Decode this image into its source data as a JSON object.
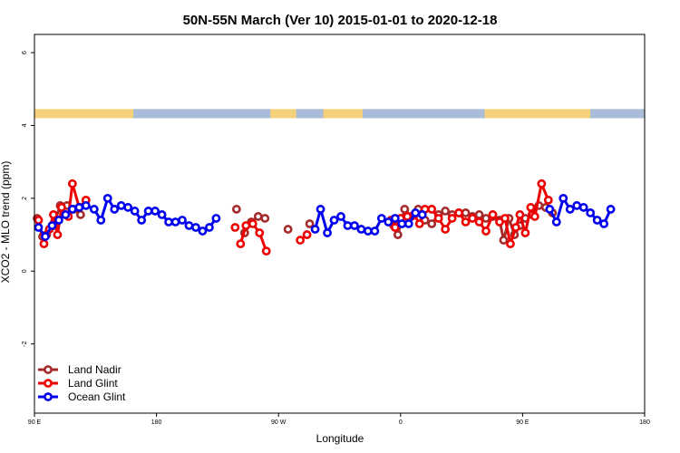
{
  "chart_data": {
    "type": "line",
    "title": "50N-55N March (Ver 10)   2015-01-01 to 2020-12-18",
    "xlabel": "Longitude",
    "ylabel": "XCO2 - MLO trend (ppm)",
    "xlim": [
      90,
      540
    ],
    "ylim": [
      -3.9,
      6.5
    ],
    "x_ticks": [
      {
        "value": 90,
        "label": "90 E"
      },
      {
        "value": 180,
        "label": "180"
      },
      {
        "value": 270,
        "label": "90 W"
      },
      {
        "value": 360,
        "label": "0"
      },
      {
        "value": 450,
        "label": "90 E"
      },
      {
        "value": 540,
        "label": "180"
      }
    ],
    "y_ticks": [
      {
        "value": -2,
        "label": "-2"
      },
      {
        "value": 0,
        "label": "0"
      },
      {
        "value": 2,
        "label": "2"
      },
      {
        "value": 4,
        "label": "4"
      },
      {
        "value": 6,
        "label": "6"
      }
    ],
    "grid": false,
    "legend_position": "bottom-left",
    "landmask": {
      "y_range": [
        4.2,
        4.45
      ],
      "land_color": "#f5d27a",
      "ocean_color": "#a9bcd9",
      "ocean_intervals": [
        [
          163,
          264
        ],
        [
          283,
          303
        ],
        [
          332,
          422
        ],
        [
          500,
          540
        ]
      ]
    },
    "series": [
      {
        "name": "Land Nadir",
        "color": "#a52a2a",
        "segments": [
          [
            [
              92,
              1.45
            ],
            [
              96,
              0.95
            ],
            [
              99,
              1.0
            ],
            [
              104,
              1.25
            ],
            [
              109,
              1.8
            ],
            [
              114,
              1.8
            ],
            [
              119,
              1.7
            ],
            [
              124,
              1.55
            ]
          ],
          [
            [
              239,
              1.7
            ]
          ],
          [
            [
              245,
              1.05
            ],
            [
              250,
              1.35
            ],
            [
              255,
              1.5
            ],
            [
              260,
              1.45
            ]
          ],
          [
            [
              277,
              1.15
            ]
          ],
          [
            [
              293,
              1.3
            ]
          ],
          [
            [
              355,
              1.25
            ],
            [
              358,
              1.0
            ],
            [
              363,
              1.7
            ],
            [
              368,
              1.5
            ],
            [
              373,
              1.7
            ],
            [
              378,
              1.4
            ],
            [
              383,
              1.3
            ],
            [
              388,
              1.55
            ],
            [
              393,
              1.65
            ],
            [
              398,
              1.55
            ],
            [
              403,
              1.6
            ],
            [
              408,
              1.6
            ],
            [
              413,
              1.5
            ],
            [
              418,
              1.55
            ],
            [
              423,
              1.45
            ],
            [
              428,
              1.5
            ],
            [
              433,
              1.4
            ],
            [
              436,
              0.85
            ],
            [
              440,
              1.45
            ],
            [
              444,
              1.0
            ],
            [
              448,
              1.25
            ],
            [
              452,
              1.45
            ],
            [
              457,
              1.55
            ],
            [
              462,
              1.8
            ],
            [
              467,
              1.75
            ],
            [
              472,
              1.6
            ]
          ]
        ]
      },
      {
        "name": "Land Glint",
        "color": "#ee0000",
        "segments": [
          [
            [
              93,
              1.4
            ],
            [
              97,
              0.75
            ],
            [
              101,
              1.15
            ],
            [
              104,
              1.55
            ],
            [
              107,
              1.0
            ],
            [
              110,
              1.75
            ],
            [
              115,
              1.5
            ],
            [
              118,
              2.4
            ],
            [
              123,
              1.75
            ],
            [
              128,
              1.95
            ]
          ],
          [
            [
              238,
              1.2
            ]
          ],
          [
            [
              242,
              0.75
            ],
            [
              246,
              1.25
            ],
            [
              251,
              1.3
            ],
            [
              256,
              1.05
            ],
            [
              261,
              0.55
            ]
          ],
          [
            [
              286,
              0.85
            ],
            [
              291,
              1.0
            ]
          ],
          [
            [
              353,
              1.4
            ],
            [
              356,
              1.2
            ],
            [
              360,
              1.45
            ],
            [
              365,
              1.5
            ],
            [
              370,
              1.55
            ],
            [
              374,
              1.3
            ],
            [
              378,
              1.7
            ],
            [
              383,
              1.7
            ],
            [
              388,
              1.45
            ],
            [
              393,
              1.15
            ],
            [
              398,
              1.45
            ],
            [
              403,
              1.6
            ],
            [
              408,
              1.35
            ],
            [
              413,
              1.45
            ],
            [
              418,
              1.35
            ],
            [
              423,
              1.1
            ],
            [
              428,
              1.55
            ],
            [
              433,
              1.35
            ],
            [
              437,
              1.45
            ],
            [
              441,
              0.75
            ],
            [
              445,
              1.2
            ],
            [
              448,
              1.55
            ],
            [
              452,
              1.05
            ],
            [
              456,
              1.75
            ],
            [
              459,
              1.5
            ],
            [
              464,
              2.4
            ],
            [
              469,
              1.95
            ]
          ]
        ]
      },
      {
        "name": "Ocean Glint",
        "color": "#0000ee",
        "segments": [
          [
            [
              93,
              1.2
            ],
            [
              98,
              0.95
            ],
            [
              103,
              1.25
            ],
            [
              108,
              1.4
            ],
            [
              113,
              1.55
            ],
            [
              118,
              1.7
            ],
            [
              123,
              1.75
            ],
            [
              128,
              1.8
            ],
            [
              134,
              1.7
            ],
            [
              139,
              1.4
            ],
            [
              144,
              2.0
            ],
            [
              149,
              1.7
            ],
            [
              154,
              1.8
            ],
            [
              159,
              1.75
            ],
            [
              164,
              1.65
            ],
            [
              169,
              1.4
            ],
            [
              174,
              1.65
            ],
            [
              179,
              1.65
            ],
            [
              184,
              1.55
            ],
            [
              189,
              1.35
            ],
            [
              194,
              1.35
            ],
            [
              199,
              1.4
            ],
            [
              204,
              1.25
            ],
            [
              209,
              1.2
            ],
            [
              214,
              1.1
            ],
            [
              219,
              1.2
            ],
            [
              224,
              1.45
            ]
          ],
          [
            [
              297,
              1.15
            ],
            [
              301,
              1.7
            ],
            [
              306,
              1.05
            ],
            [
              311,
              1.4
            ],
            [
              316,
              1.5
            ],
            [
              321,
              1.25
            ],
            [
              326,
              1.25
            ],
            [
              331,
              1.15
            ],
            [
              336,
              1.1
            ],
            [
              341,
              1.1
            ],
            [
              346,
              1.45
            ],
            [
              351,
              1.35
            ],
            [
              356,
              1.45
            ],
            [
              361,
              1.3
            ],
            [
              366,
              1.3
            ],
            [
              371,
              1.6
            ],
            [
              376,
              1.55
            ]
          ],
          [
            [
              470,
              1.7
            ],
            [
              475,
              1.35
            ],
            [
              480,
              2.0
            ],
            [
              485,
              1.7
            ],
            [
              490,
              1.8
            ],
            [
              495,
              1.75
            ],
            [
              500,
              1.6
            ],
            [
              505,
              1.4
            ],
            [
              510,
              1.3
            ],
            [
              515,
              1.7
            ]
          ]
        ]
      }
    ]
  }
}
